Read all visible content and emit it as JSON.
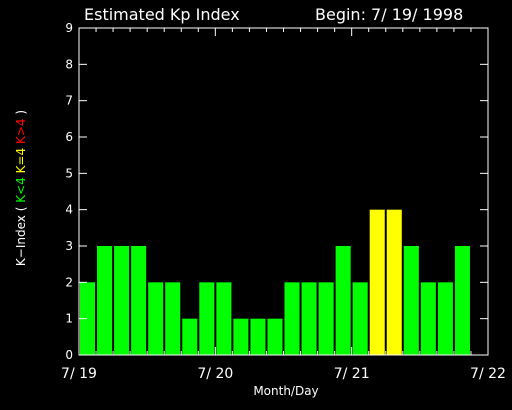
{
  "chart_data": {
    "type": "bar",
    "title": "Estimated Kp Index",
    "begin_label": "Begin: 7/ 19/ 1998",
    "xlabel": "Month/Day",
    "ylabel": {
      "prefix": "K−Index ( ",
      "low": "K<4",
      "mid": "K=4",
      "high": "K>4",
      "suffix": " )"
    },
    "ylim": [
      0,
      9
    ],
    "yticks": [
      "0",
      "1",
      "2",
      "3",
      "4",
      "5",
      "6",
      "7",
      "8",
      "9"
    ],
    "x_tick_labels": [
      "7/ 19",
      "7/ 20",
      "7/ 21",
      "7/ 22"
    ],
    "bins_per_day": 8,
    "days": 3,
    "values": [
      2,
      3,
      3,
      3,
      2,
      2,
      1,
      2,
      2,
      1,
      1,
      1,
      2,
      2,
      2,
      3,
      2,
      4,
      4,
      3,
      2,
      2,
      3
    ],
    "colors": {
      "low": "#00ff00",
      "mid": "#ffff00",
      "high": "#ff0000",
      "axes": "#ffffff",
      "background": "#000000"
    },
    "grid": false
  }
}
